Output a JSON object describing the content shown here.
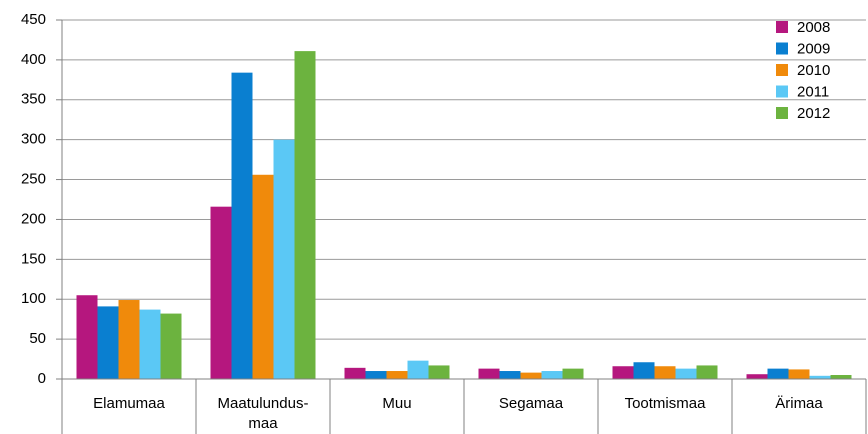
{
  "chart_data": {
    "type": "bar",
    "categories": [
      "Elamumaa",
      "Maatulundus-maa",
      "Muu",
      "Segamaa",
      "Tootmismaa",
      "Ärimaa"
    ],
    "series": [
      {
        "name": "2008",
        "color": "#b5177e",
        "values": [
          105,
          216,
          14,
          13,
          16,
          6
        ]
      },
      {
        "name": "2009",
        "color": "#0a7fd0",
        "values": [
          91,
          384,
          10,
          10,
          21,
          13
        ]
      },
      {
        "name": "2010",
        "color": "#f08a0b",
        "values": [
          99,
          256,
          10,
          8,
          16,
          12
        ]
      },
      {
        "name": "2011",
        "color": "#5bc8f5",
        "values": [
          87,
          300,
          23,
          10,
          13,
          4
        ]
      },
      {
        "name": "2012",
        "color": "#6cb33f",
        "values": [
          82,
          411,
          17,
          13,
          17,
          5
        ]
      }
    ],
    "ylim": [
      0,
      450
    ],
    "yticks": [
      0,
      50,
      100,
      150,
      200,
      250,
      300,
      350,
      400,
      450
    ],
    "grid": true,
    "legend": "top-right"
  }
}
